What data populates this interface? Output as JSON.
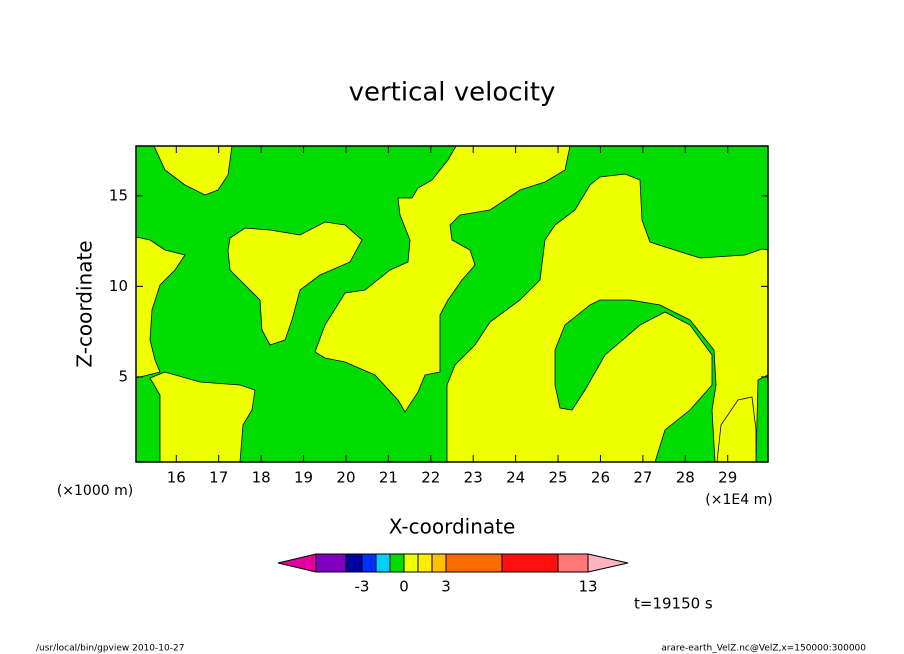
{
  "chart_data": {
    "type": "contour",
    "title": "vertical velocity",
    "xlabel": "X-coordinate",
    "ylabel": "Z-coordinate",
    "x_unit_left": "(×1000 m)",
    "x_unit_right": "(×1E4 m)",
    "xlim": [
      15.05,
      29.95
    ],
    "xticks": [
      16,
      17,
      18,
      19,
      20,
      21,
      22,
      23,
      24,
      25,
      26,
      27,
      28,
      29
    ],
    "ylim": [
      0.3,
      17.75
    ],
    "yticks": [
      5,
      10,
      15
    ],
    "colorbar": {
      "colors": [
        "#e000a0",
        "#8000c0",
        "#0000a0",
        "#0030ff",
        "#00d0ff",
        "#00dc00",
        "#eeff00",
        "#ffee00",
        "#ffc000",
        "#ff6a00",
        "#ff1010",
        "#ff7878",
        "#ffb4c0"
      ],
      "ticks": [
        -3,
        0,
        3,
        13
      ]
    },
    "time_label": "t=19150 s",
    "footer_left": "/usr/local/bin/gpview  2010-10-27",
    "footer_right": "arare-earth_VelZ.nc@VelZ,x=150000:300000"
  }
}
